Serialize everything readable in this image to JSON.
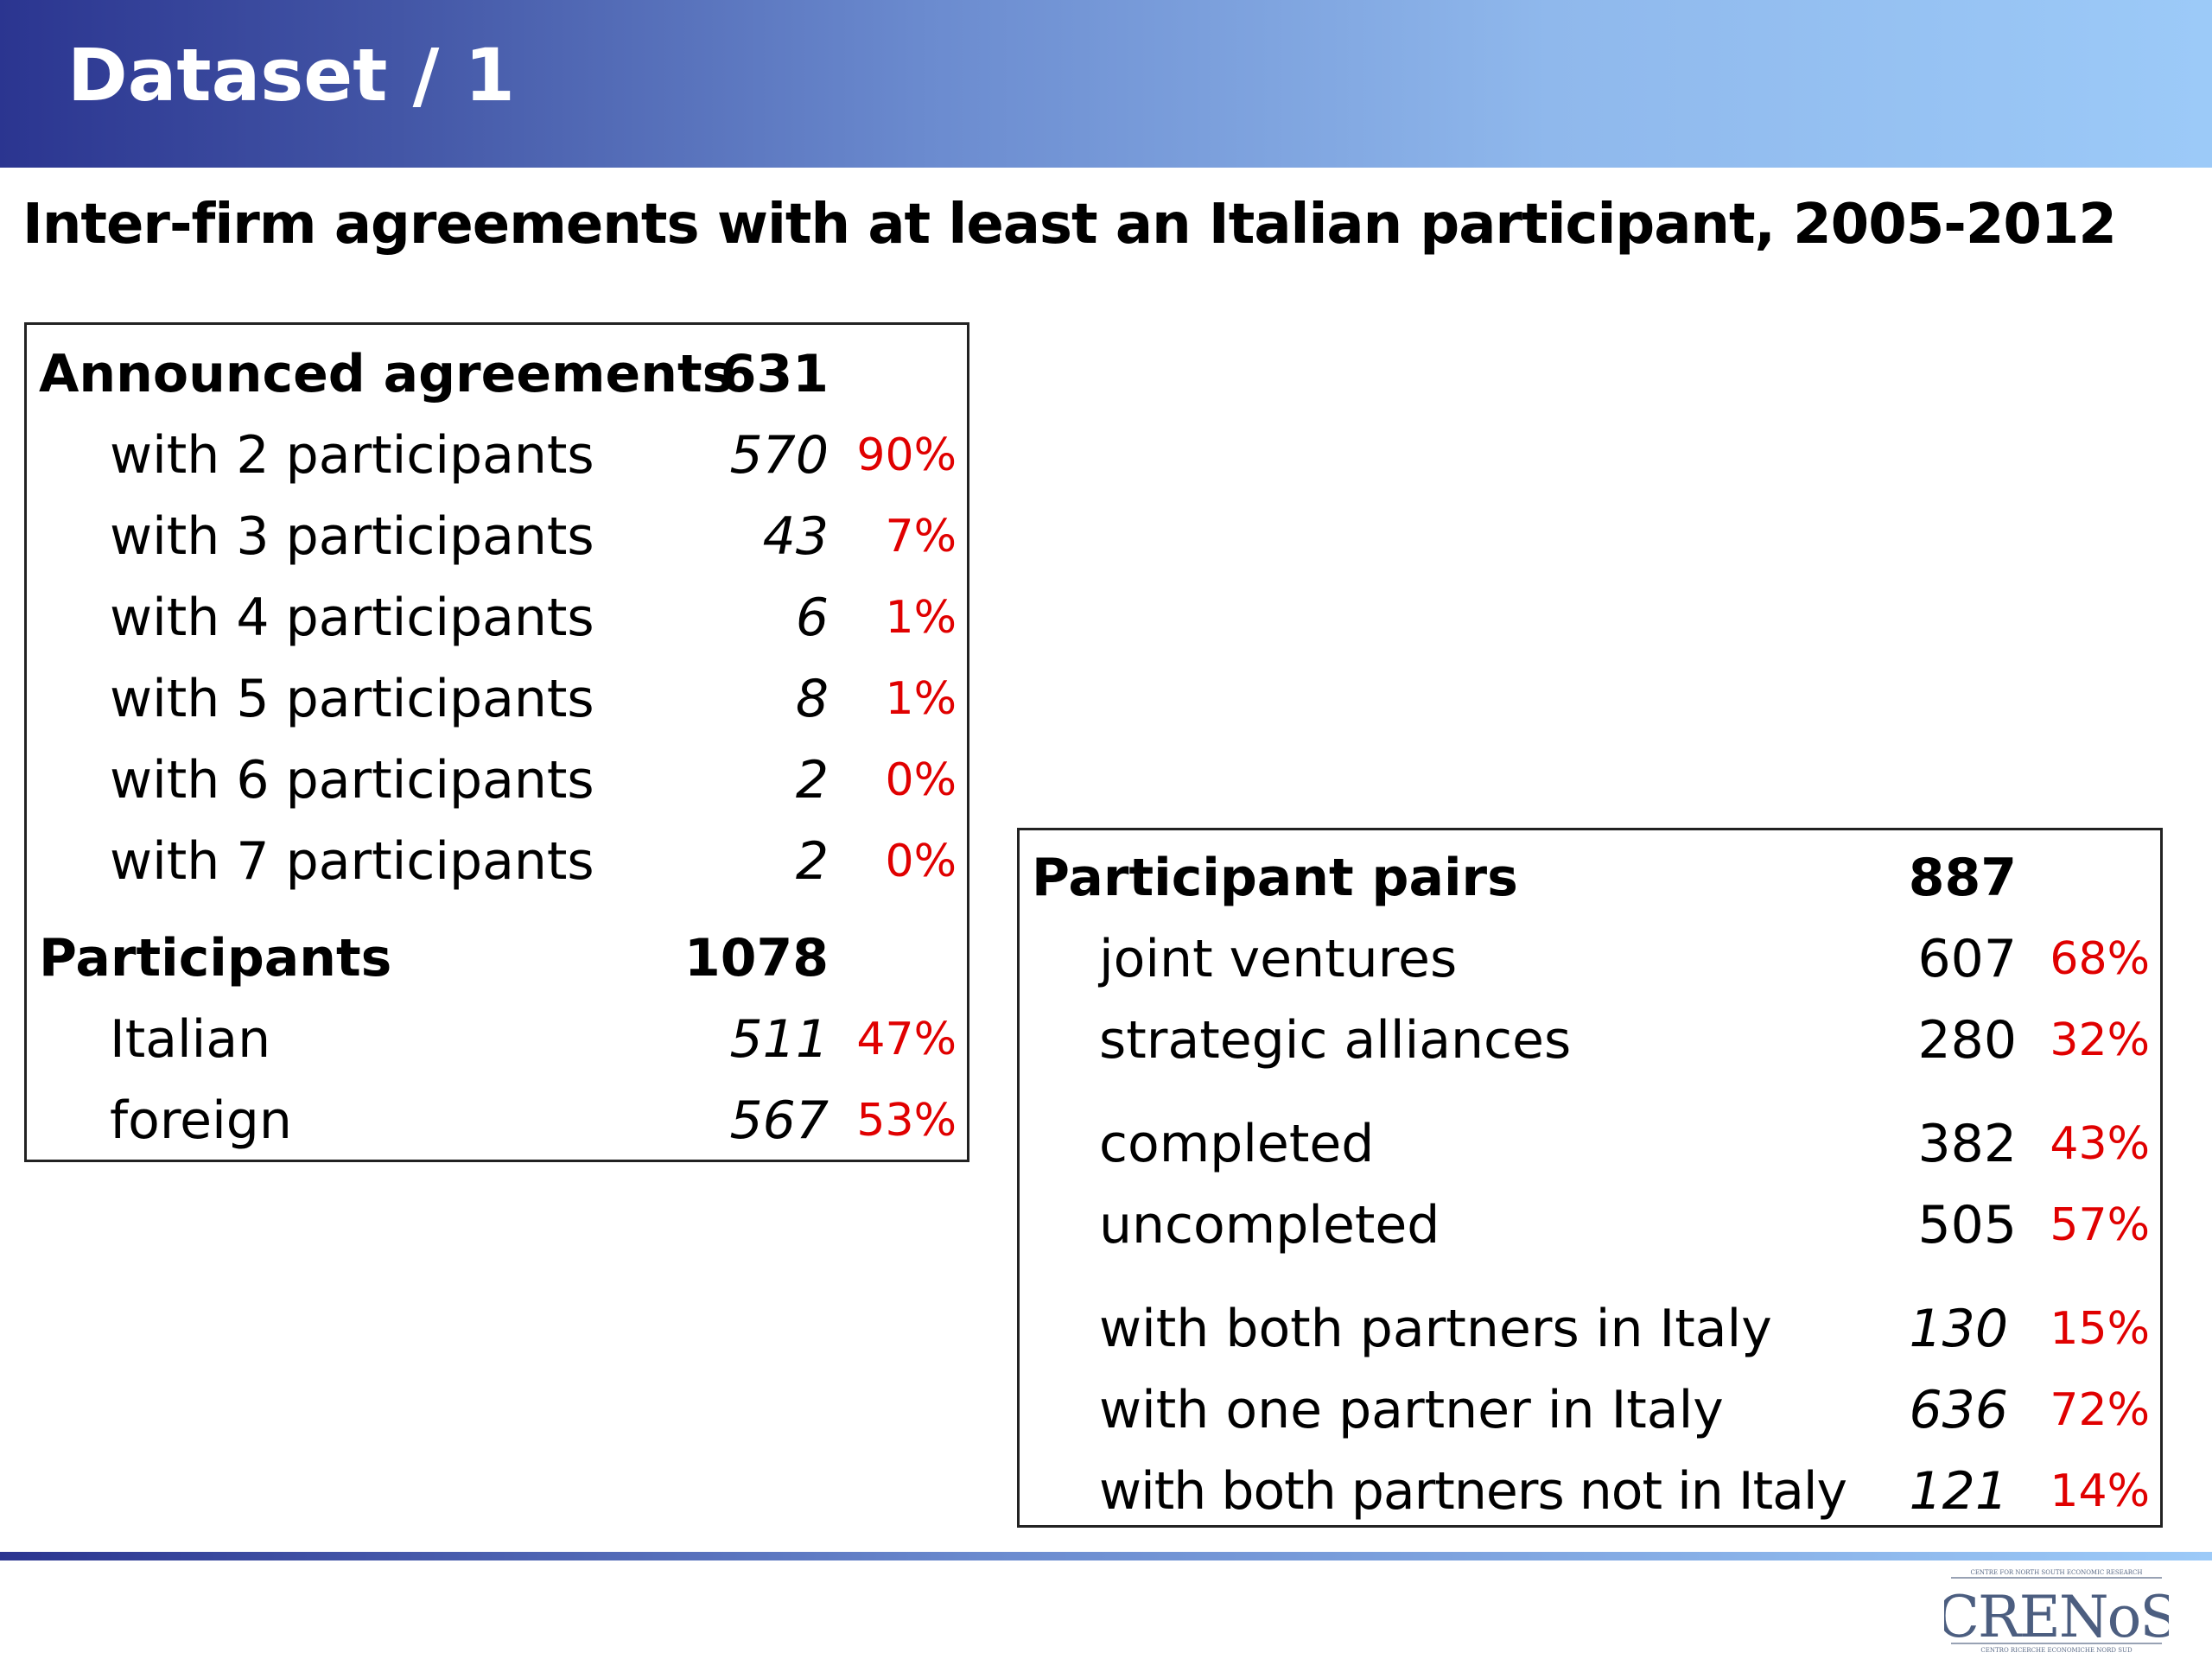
{
  "slide": {
    "title": "Dataset / 1",
    "subtitle": "Inter-firm agreements with at least an Italian participant, 2005-2012"
  },
  "left_table": {
    "rows": [
      {
        "label": "Announced agreements",
        "value": "631",
        "pct": ""
      },
      {
        "label": "with 2 participants",
        "value": "570",
        "pct": "90%"
      },
      {
        "label": "with 3 participants",
        "value": "43",
        "pct": "7%"
      },
      {
        "label": "with 4 participants",
        "value": "6",
        "pct": "1%"
      },
      {
        "label": "with 5 participants",
        "value": "8",
        "pct": "1%"
      },
      {
        "label": "with 6 participants",
        "value": "2",
        "pct": "0%"
      },
      {
        "label": "with 7 participants",
        "value": "2",
        "pct": "0%"
      },
      {
        "label": "Participants",
        "value": "1078",
        "pct": ""
      },
      {
        "label": "Italian",
        "value": "511",
        "pct": "47%"
      },
      {
        "label": "foreign",
        "value": "567",
        "pct": "53%"
      }
    ]
  },
  "right_table": {
    "rows": [
      {
        "label": "Participant pairs",
        "value": "887",
        "pct": ""
      },
      {
        "label": "joint ventures",
        "value": "607",
        "pct": "68%"
      },
      {
        "label": "strategic alliances",
        "value": "280",
        "pct": "32%"
      },
      {
        "label": "completed",
        "value": "382",
        "pct": "43%"
      },
      {
        "label": "uncompleted",
        "value": "505",
        "pct": "57%"
      },
      {
        "label": "with both partners in Italy",
        "value": "130",
        "pct": "15%"
      },
      {
        "label": "with one partner in Italy",
        "value": "636",
        "pct": "72%"
      },
      {
        "label": "with both partners not in Italy",
        "value": "121",
        "pct": "14%"
      }
    ]
  },
  "logo": {
    "name": "CRENoS",
    "caption_top": "CENTRE FOR NORTH SOUTH ECONOMIC RESEARCH",
    "caption_bottom": "CENTRO RICERCHE ECONOMICHE NORD SUD"
  },
  "colors": {
    "header_dark": "#2b3590",
    "header_light": "#9ccaf8",
    "percent_red": "#e00000"
  }
}
